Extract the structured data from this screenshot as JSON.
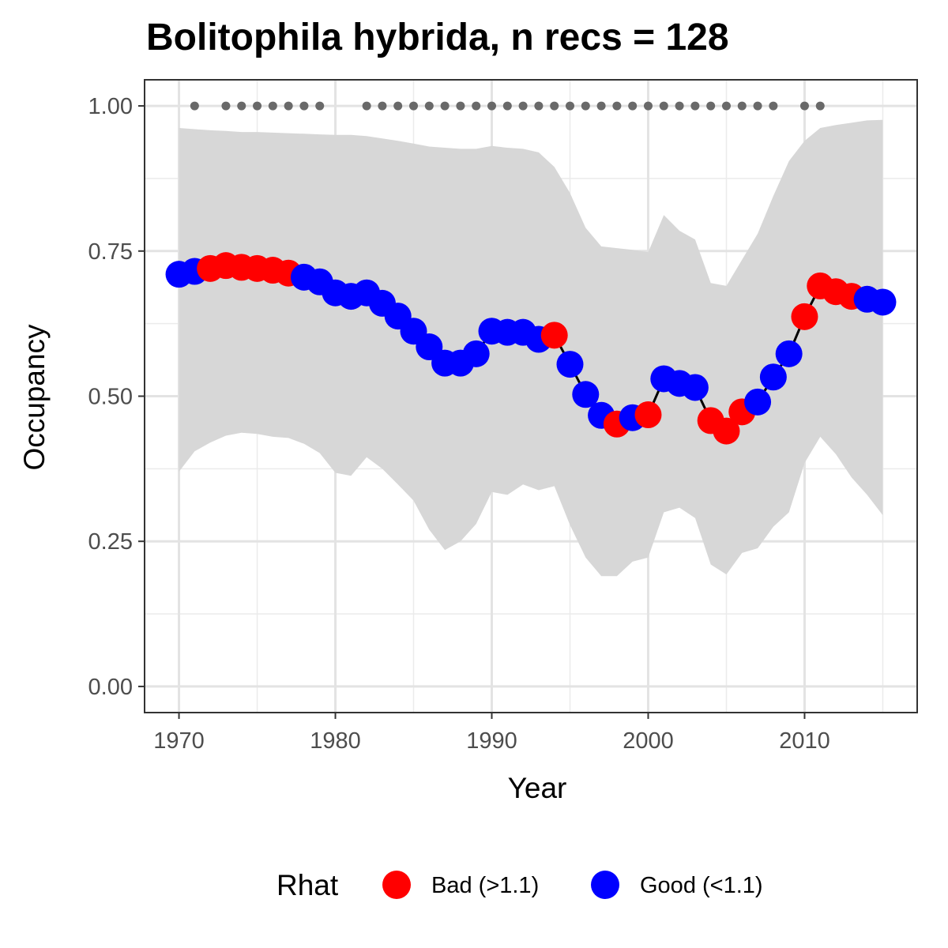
{
  "chart_data": {
    "type": "line",
    "title": "Bolitophila hybrida, n recs = 128",
    "xlabel": "Year",
    "ylabel": "Occupancy",
    "xlim": [
      1967.8,
      1916.8
    ],
    "ylim": [
      -0.045,
      1.045
    ],
    "x_ticks": [
      1970,
      1980,
      1990,
      2000,
      2010
    ],
    "x_tick_labels": [
      "1970",
      "1980",
      "1990",
      "2000",
      "2010"
    ],
    "x_minor_ticks": [
      1975,
      1985,
      1995,
      2005,
      2015
    ],
    "y_ticks": [
      0,
      0.25,
      0.5,
      0.75,
      1.0
    ],
    "y_tick_labels": [
      "0.00",
      "0.25",
      "0.50",
      "0.75",
      "1.00"
    ],
    "y_minor_ticks": [
      0.125,
      0.375,
      0.625,
      0.875
    ],
    "grid": true,
    "legend": {
      "title": "Rhat",
      "position": "bottom",
      "entries": [
        {
          "label": "Bad (>1.1)",
          "color": "#ff0000"
        },
        {
          "label": "Good (<1.1)",
          "color": "#0000ff"
        }
      ]
    },
    "colors": {
      "bad": "#ff0000",
      "good": "#0000ff",
      "ribbon": "#d6d6d6",
      "line": "#000000",
      "record_marks": "#696969"
    },
    "series": [
      {
        "x": [
          1970,
          1971,
          1972,
          1973,
          1974,
          1975,
          1976,
          1977,
          1978,
          1979,
          1980,
          1981,
          1982,
          1983,
          1984,
          1985,
          1986,
          1987,
          1988,
          1989,
          1990,
          1991,
          1992,
          1993,
          1994,
          1995,
          1996,
          1997,
          1998,
          1999,
          2000,
          2001,
          2002,
          2003,
          2004,
          2005,
          2006,
          2007,
          2008,
          2009,
          2010,
          2011,
          2012,
          2013,
          2014,
          2015
        ],
        "y": [
          0.71,
          0.715,
          0.72,
          0.725,
          0.722,
          0.72,
          0.717,
          0.712,
          0.705,
          0.697,
          0.678,
          0.672,
          0.678,
          0.66,
          0.638,
          0.612,
          0.585,
          0.557,
          0.557,
          0.573,
          0.612,
          0.61,
          0.61,
          0.598,
          0.605,
          0.555,
          0.503,
          0.467,
          0.452,
          0.463,
          0.468,
          0.53,
          0.522,
          0.515,
          0.458,
          0.44,
          0.473,
          0.49,
          0.533,
          0.573,
          0.637,
          0.69,
          0.68,
          0.672,
          0.667,
          0.662
        ],
        "rhat": [
          "Good",
          "Good",
          "Bad",
          "Bad",
          "Bad",
          "Bad",
          "Bad",
          "Bad",
          "Good",
          "Good",
          "Good",
          "Good",
          "Good",
          "Good",
          "Good",
          "Good",
          "Good",
          "Good",
          "Good",
          "Good",
          "Good",
          "Good",
          "Good",
          "Good",
          "Bad",
          "Good",
          "Good",
          "Good",
          "Bad",
          "Good",
          "Bad",
          "Good",
          "Good",
          "Good",
          "Bad",
          "Bad",
          "Bad",
          "Good",
          "Good",
          "Good",
          "Bad",
          "Bad",
          "Bad",
          "Bad",
          "Good",
          "Good"
        ]
      }
    ],
    "credible_interval": {
      "upper": [
        0.962,
        0.96,
        0.958,
        0.957,
        0.955,
        0.955,
        0.954,
        0.953,
        0.952,
        0.951,
        0.95,
        0.95,
        0.948,
        0.944,
        0.94,
        0.935,
        0.93,
        0.928,
        0.926,
        0.926,
        0.931,
        0.928,
        0.926,
        0.92,
        0.895,
        0.85,
        0.79,
        0.758,
        0.755,
        0.752,
        0.748,
        0.812,
        0.785,
        0.77,
        0.695,
        0.69,
        0.735,
        0.78,
        0.845,
        0.905,
        0.94,
        0.962,
        0.967,
        0.971,
        0.975,
        0.976
      ],
      "lower": [
        0.37,
        0.405,
        0.42,
        0.432,
        0.437,
        0.435,
        0.43,
        0.428,
        0.418,
        0.402,
        0.368,
        0.363,
        0.395,
        0.375,
        0.348,
        0.32,
        0.27,
        0.235,
        0.25,
        0.28,
        0.335,
        0.33,
        0.348,
        0.338,
        0.345,
        0.278,
        0.222,
        0.19,
        0.19,
        0.215,
        0.222,
        0.3,
        0.308,
        0.29,
        0.21,
        0.193,
        0.23,
        0.238,
        0.275,
        0.3,
        0.385,
        0.43,
        0.4,
        0.36,
        0.33,
        0.295
      ]
    },
    "record_years": [
      1971,
      1973,
      1974,
      1975,
      1976,
      1977,
      1978,
      1979,
      1982,
      1983,
      1984,
      1985,
      1986,
      1987,
      1988,
      1989,
      1990,
      1991,
      1992,
      1993,
      1994,
      1995,
      1996,
      1997,
      1998,
      1999,
      2000,
      2001,
      2002,
      2003,
      2004,
      2005,
      2006,
      2007,
      2008,
      2010,
      2011
    ],
    "record_y": 1.0
  }
}
